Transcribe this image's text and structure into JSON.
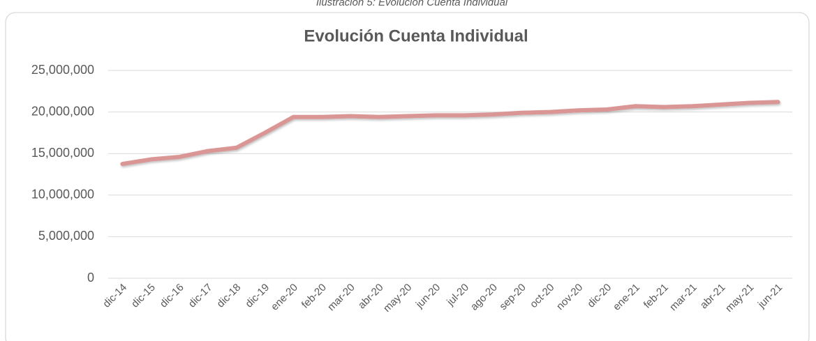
{
  "caption": "Ilustración 5: Evolución Cuenta Individual",
  "chart_data": {
    "type": "line",
    "title": "Evolución Cuenta Individual",
    "categories": [
      "dic-14",
      "dic-15",
      "dic-16",
      "dic-17",
      "dic-18",
      "dic-19",
      "ene-20",
      "feb-20",
      "mar-20",
      "abr-20",
      "may-20",
      "jun-20",
      "jul-20",
      "ago-20",
      "sep-20",
      "oct-20",
      "nov-20",
      "dic-20",
      "ene-21",
      "feb-21",
      "mar-21",
      "abr-21",
      "may-21",
      "jun-21"
    ],
    "series": [
      {
        "name": "Cuenta Individual",
        "color": "#d99694",
        "values": [
          13750000,
          14300000,
          14600000,
          15300000,
          15700000,
          17500000,
          19400000,
          19400000,
          19500000,
          19400000,
          19500000,
          19600000,
          19600000,
          19700000,
          19900000,
          20000000,
          20200000,
          20300000,
          20700000,
          20600000,
          20700000,
          20900000,
          21100000,
          21200000
        ]
      }
    ],
    "ylim": [
      0,
      25000000
    ],
    "yticks": [
      0,
      {
        "value": 5000000,
        "label": "5,000,000"
      },
      {
        "value": 10000000,
        "label": "10,000,000"
      },
      {
        "value": 15000000,
        "label": "15,000,000"
      },
      {
        "value": 20000000,
        "label": "20,000,000"
      },
      {
        "value": 25000000,
        "label": "25,000,000"
      }
    ],
    "grid": true
  }
}
